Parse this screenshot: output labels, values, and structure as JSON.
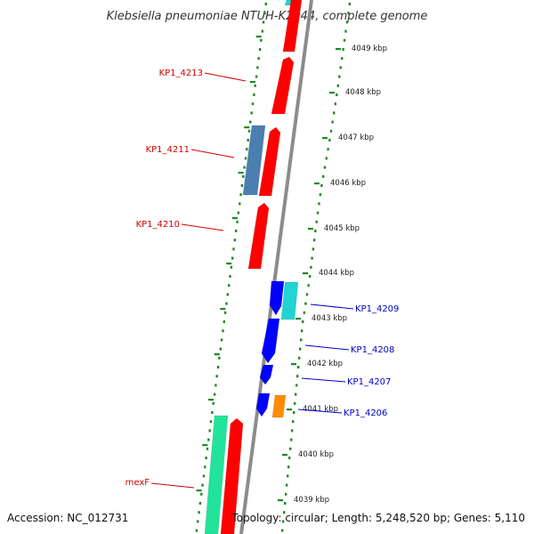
{
  "title": "Klebsiella pneumoniae NTUH-K2044, complete genome",
  "footer": {
    "accession": "Accession: NC_012731",
    "summary": "Topology: circular; Length: 5,248,520 bp; Genes: 5,110"
  },
  "colors": {
    "backbone": "#8c8c8c",
    "tick_green": "#1e8a1e",
    "label_red": "#d40000",
    "label_blue": "#0000c8",
    "gene_red": "#ff0000",
    "gene_blue": "#0000ff",
    "gene_cyan": "#22d3d3",
    "gene_steelblue": "#4a7fb0",
    "gene_orange": "#ff8c00",
    "gene_springgreen": "#22e39a"
  },
  "kbp_labels": [
    "4049 kbp",
    "4048 kbp",
    "4047 kbp",
    "4046 kbp",
    "4045 kbp",
    "4044 kbp",
    "4043 kbp",
    "4042 kbp",
    "4041 kbp",
    "4040 kbp",
    "4039 kbp"
  ],
  "gene_labels": [
    {
      "name": "KP1_4213",
      "strand": "minus"
    },
    {
      "name": "KP1_4211",
      "strand": "minus"
    },
    {
      "name": "KP1_4210",
      "strand": "minus"
    },
    {
      "name": "KP1_4209",
      "strand": "plus"
    },
    {
      "name": "KP1_4208",
      "strand": "plus"
    },
    {
      "name": "KP1_4207",
      "strand": "plus"
    },
    {
      "name": "KP1_4206",
      "strand": "plus"
    },
    {
      "name": "mexF",
      "strand": "minus"
    }
  ]
}
